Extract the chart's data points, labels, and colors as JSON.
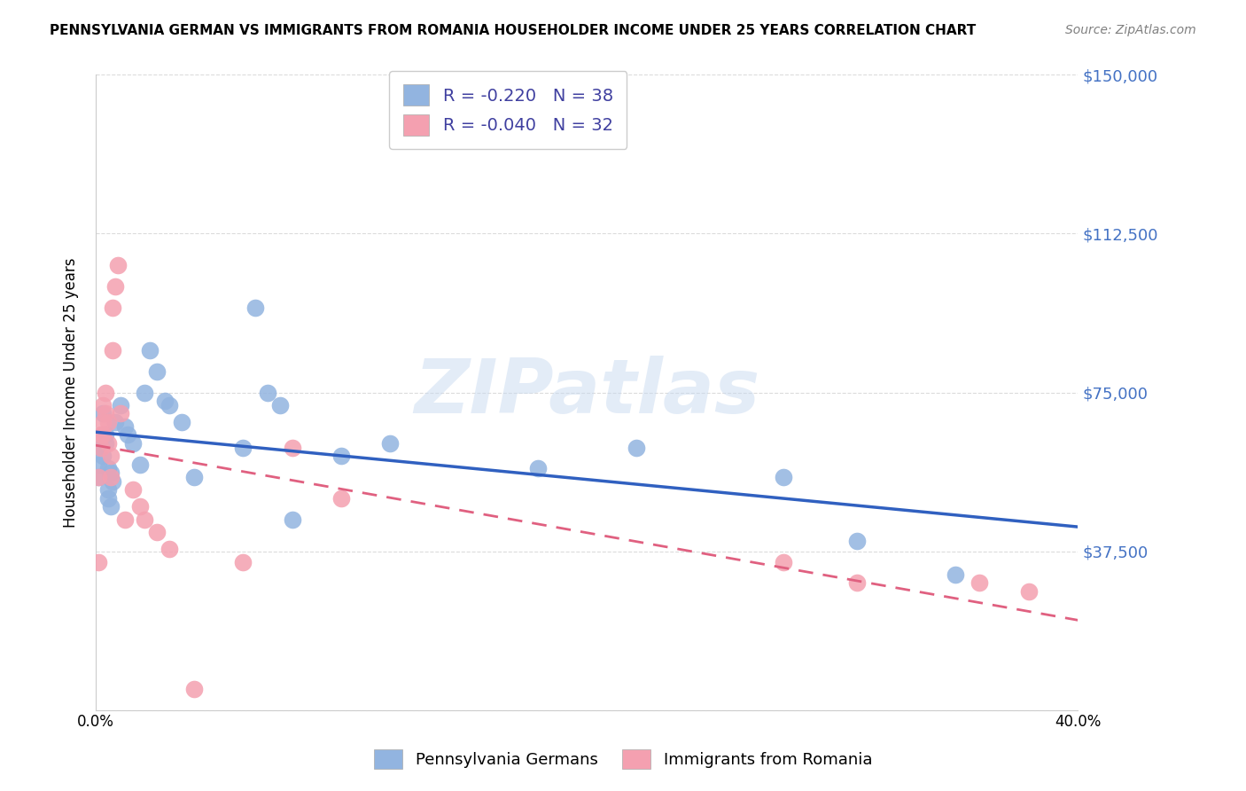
{
  "title": "PENNSYLVANIA GERMAN VS IMMIGRANTS FROM ROMANIA HOUSEHOLDER INCOME UNDER 25 YEARS CORRELATION CHART",
  "source": "Source: ZipAtlas.com",
  "ylabel": "Householder Income Under 25 years",
  "xlabel": "",
  "xlim": [
    0.0,
    0.4
  ],
  "ylim": [
    0,
    150000
  ],
  "yticks": [
    0,
    37500,
    75000,
    112500,
    150000
  ],
  "ytick_labels": [
    "",
    "$37,500",
    "$75,000",
    "$112,500",
    "$150,000"
  ],
  "xticks": [
    0.0,
    0.05,
    0.1,
    0.15,
    0.2,
    0.25,
    0.3,
    0.35,
    0.4
  ],
  "xtick_labels": [
    "0.0%",
    "",
    "",
    "",
    "",
    "",
    "",
    "",
    "40.0%"
  ],
  "blue_R": -0.22,
  "blue_N": 38,
  "pink_R": -0.04,
  "pink_N": 32,
  "blue_color": "#92b4e0",
  "pink_color": "#f4a0b0",
  "blue_line_color": "#3060c0",
  "pink_line_color": "#e06080",
  "watermark": "ZIPatlas",
  "legend_label_blue": "Pennsylvania Germans",
  "legend_label_pink": "Immigrants from Romania",
  "blue_x": [
    0.001,
    0.001,
    0.002,
    0.003,
    0.003,
    0.004,
    0.004,
    0.005,
    0.005,
    0.005,
    0.006,
    0.006,
    0.007,
    0.008,
    0.01,
    0.012,
    0.013,
    0.015,
    0.018,
    0.02,
    0.022,
    0.025,
    0.028,
    0.03,
    0.035,
    0.04,
    0.06,
    0.065,
    0.07,
    0.075,
    0.08,
    0.1,
    0.12,
    0.18,
    0.22,
    0.28,
    0.31,
    0.35
  ],
  "blue_y": [
    55000,
    58000,
    62000,
    70000,
    60000,
    65000,
    63000,
    57000,
    52000,
    50000,
    48000,
    56000,
    54000,
    68000,
    72000,
    67000,
    65000,
    63000,
    58000,
    75000,
    85000,
    80000,
    73000,
    72000,
    68000,
    55000,
    62000,
    95000,
    75000,
    72000,
    45000,
    60000,
    63000,
    57000,
    62000,
    55000,
    40000,
    32000
  ],
  "pink_x": [
    0.001,
    0.001,
    0.002,
    0.002,
    0.003,
    0.003,
    0.003,
    0.004,
    0.004,
    0.005,
    0.005,
    0.006,
    0.006,
    0.007,
    0.007,
    0.008,
    0.009,
    0.01,
    0.012,
    0.015,
    0.018,
    0.02,
    0.025,
    0.03,
    0.04,
    0.06,
    0.08,
    0.1,
    0.28,
    0.31,
    0.36,
    0.38
  ],
  "pink_y": [
    35000,
    55000,
    62000,
    65000,
    68000,
    65000,
    72000,
    70000,
    75000,
    68000,
    63000,
    60000,
    55000,
    85000,
    95000,
    100000,
    105000,
    70000,
    45000,
    52000,
    48000,
    45000,
    42000,
    38000,
    5000,
    35000,
    62000,
    50000,
    35000,
    30000,
    30000,
    28000
  ]
}
